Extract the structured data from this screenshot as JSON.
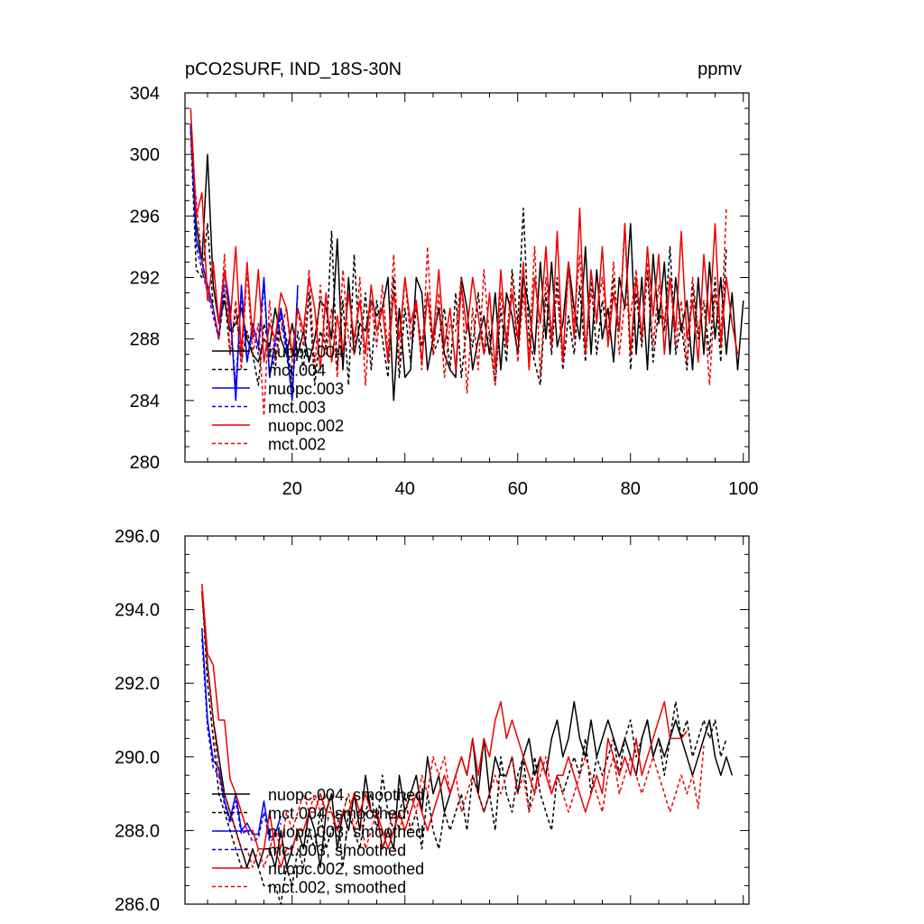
{
  "chart_data": [
    {
      "type": "line",
      "title_left": "pCO2SURF, IND_18S-30N",
      "title_right": "ppmv",
      "xlim": [
        1,
        101
      ],
      "ylim": [
        280,
        304
      ],
      "xticks": [
        20,
        40,
        60,
        80,
        100
      ],
      "xtick_labels": [
        "20",
        "40",
        "60",
        "80",
        "100"
      ],
      "yticks": [
        280,
        284,
        288,
        292,
        296,
        300,
        304
      ],
      "ytick_labels": [
        "280",
        "284",
        "288",
        "292",
        "296",
        "300",
        "304"
      ],
      "legend_position": "lower-left",
      "series": [
        {
          "name": "nuopc.004",
          "color": "#000000",
          "dash": "solid",
          "x_start": 2,
          "values": [
            301.8,
            295.5,
            293.0,
            300.0,
            291.5,
            289.0,
            290.5,
            288.5,
            289.0,
            290.0,
            288.0,
            287.0,
            286.5,
            288.0,
            287.5,
            290.0,
            288.0,
            287.0,
            289.0,
            287.0,
            288.5,
            286.5,
            288.0,
            290.5,
            290.0,
            288.0,
            294.5,
            286.0,
            292.0,
            287.0,
            289.0,
            288.5,
            290.5,
            289.5,
            290.0,
            292.0,
            284.0,
            290.0,
            285.5,
            286.0,
            292.0,
            291.0,
            286.0,
            288.0,
            290.0,
            287.0,
            286.0,
            285.5,
            292.0,
            290.0,
            286.0,
            288.0,
            289.5,
            287.0,
            291.0,
            286.0,
            291.0,
            289.5,
            287.0,
            292.0,
            290.0,
            287.0,
            293.0,
            288.0,
            293.0,
            287.5,
            289.0,
            293.0,
            290.0,
            288.0,
            294.0,
            287.0,
            292.5,
            288.0,
            290.0,
            286.5,
            292.0,
            290.0,
            295.5,
            287.0,
            292.0,
            286.0,
            293.5,
            289.0,
            293.0,
            287.0,
            292.0,
            288.5,
            290.5,
            286.0,
            292.0,
            287.0,
            293.0,
            288.0,
            292.0,
            287.0,
            291.0,
            286.0,
            290.5
          ]
        },
        {
          "name": "mct.004",
          "color": "#000000",
          "dash": "dashed",
          "x_start": 2,
          "values": [
            301.5,
            292.5,
            292.0,
            295.5,
            290.0,
            288.0,
            291.0,
            287.0,
            290.0,
            286.5,
            288.5,
            287.0,
            285.0,
            289.0,
            287.5,
            286.0,
            290.0,
            288.0,
            285.0,
            288.5,
            286.0,
            291.0,
            285.0,
            288.5,
            287.5,
            295.0,
            286.0,
            290.5,
            285.0,
            293.5,
            287.0,
            291.0,
            286.0,
            290.5,
            288.0,
            285.5,
            292.0,
            285.5,
            290.0,
            286.5,
            290.0,
            287.5,
            291.0,
            287.0,
            288.0,
            290.0,
            286.0,
            291.0,
            285.5,
            289.0,
            287.5,
            291.0,
            287.0,
            288.5,
            285.0,
            290.0,
            286.5,
            292.5,
            289.0,
            296.5,
            288.0,
            286.5,
            285.0,
            291.0,
            287.0,
            292.0,
            286.0,
            289.5,
            287.0,
            291.5,
            286.5,
            292.0,
            287.0,
            290.5,
            288.0,
            292.0,
            288.5,
            295.5,
            286.0,
            291.0,
            287.5,
            292.5,
            286.5,
            290.0,
            288.5,
            294.0,
            287.0,
            289.0,
            286.0,
            291.5,
            288.0,
            290.5,
            287.0,
            292.0,
            286.5,
            294.0
          ]
        },
        {
          "name": "nuopc.003",
          "color": "#0000ee",
          "dash": "solid",
          "x_start": 2,
          "values": [
            302.0,
            294.5,
            293.0,
            291.5,
            290.0,
            288.0,
            292.5,
            290.0,
            284.0,
            291.5,
            286.5,
            289.0,
            287.5,
            292.0,
            285.5,
            288.0,
            290.0,
            287.5,
            284.0,
            291.5
          ]
        },
        {
          "name": "mct.003",
          "color": "#0000ee",
          "dash": "dashed",
          "x_start": 2,
          "values": [
            302.0,
            294.0,
            292.5,
            291.0,
            289.5,
            288.0,
            291.5,
            289.5,
            285.0,
            291.0,
            286.5,
            288.5,
            287.0,
            291.5,
            285.5,
            287.5,
            289.5,
            287.0,
            284.5,
            291.0
          ]
        },
        {
          "name": "nuopc.002",
          "color": "#ee0000",
          "dash": "solid",
          "x_start": 2,
          "values": [
            303.0,
            296.0,
            297.5,
            290.5,
            293.0,
            289.0,
            292.5,
            289.0,
            294.0,
            287.0,
            293.0,
            288.0,
            292.5,
            286.5,
            289.0,
            288.0,
            291.0,
            290.0,
            287.0,
            290.0,
            288.5,
            292.0,
            290.0,
            286.0,
            291.0,
            286.5,
            289.5,
            287.0,
            291.0,
            288.0,
            290.5,
            287.0,
            291.5,
            288.5,
            290.0,
            286.5,
            291.0,
            288.0,
            292.0,
            289.0,
            290.5,
            286.5,
            291.0,
            288.0,
            292.5,
            287.5,
            290.0,
            286.0,
            291.5,
            288.5,
            292.0,
            289.5,
            287.0,
            291.0,
            286.0,
            292.5,
            287.5,
            291.0,
            288.0,
            293.0,
            286.0,
            292.0,
            289.0,
            294.0,
            287.5,
            295.0,
            286.5,
            293.0,
            288.0,
            296.5,
            287.0,
            292.5,
            289.0,
            294.0,
            287.5,
            291.0,
            288.5,
            295.5,
            287.0,
            292.0,
            288.0,
            294.0,
            289.5,
            293.5,
            287.0,
            292.0,
            288.5,
            295.0,
            288.0,
            290.5,
            286.5,
            293.5,
            289.0,
            295.5,
            287.5,
            292.0,
            289.0,
            287.0
          ]
        },
        {
          "name": "mct.002",
          "color": "#ee0000",
          "dash": "dashed",
          "x_start": 2,
          "values": [
            301.0,
            297.0,
            293.0,
            291.0,
            290.0,
            288.0,
            293.5,
            287.0,
            290.5,
            286.0,
            292.5,
            287.0,
            289.0,
            283.0,
            290.5,
            286.5,
            288.5,
            290.0,
            286.5,
            290.0,
            287.5,
            292.5,
            286.0,
            291.5,
            287.0,
            290.0,
            285.5,
            292.5,
            288.0,
            287.0,
            292.0,
            285.0,
            290.5,
            287.5,
            291.5,
            287.0,
            293.5,
            286.5,
            292.0,
            288.0,
            290.5,
            286.0,
            294.0,
            287.0,
            291.0,
            285.5,
            289.0,
            288.5,
            292.0,
            284.5,
            290.0,
            286.0,
            292.5,
            288.0,
            285.0,
            291.0,
            288.0,
            292.0,
            286.5,
            291.0,
            287.0,
            294.0,
            285.5,
            292.0,
            288.5,
            291.0,
            286.5,
            292.5,
            289.0,
            293.5,
            287.0,
            291.0,
            289.5,
            292.0,
            288.0,
            293.0,
            287.0,
            290.5,
            289.5,
            292.5,
            288.0,
            293.0,
            287.5,
            291.5,
            289.0,
            292.0,
            287.5,
            290.5,
            286.5,
            292.0,
            288.5,
            290.5,
            285.0,
            291.0,
            288.0,
            296.5
          ]
        }
      ]
    },
    {
      "type": "line",
      "title_left": "",
      "title_right": "",
      "xlim": [
        1,
        101
      ],
      "ylim": [
        286,
        296
      ],
      "xticks": [
        20,
        40,
        60,
        80,
        100
      ],
      "xtick_labels": [
        "",
        "",
        "",
        "",
        ""
      ],
      "yticks": [
        286,
        288,
        290,
        292,
        294,
        296
      ],
      "ytick_labels": [
        "286.0",
        "288.0",
        "290.0",
        "292.0",
        "294.0",
        "296.0"
      ],
      "legend_position": "lower-left",
      "series": [
        {
          "name": "nuopc.004, smoothed",
          "color": "#000000",
          "dash": "solid",
          "x_start": 4,
          "values": [
            294.5,
            292.5,
            291.0,
            290.0,
            289.0,
            288.5,
            288.0,
            287.5,
            287.0,
            287.5,
            287.0,
            287.5,
            287.5,
            287.0,
            288.0,
            287.0,
            287.5,
            288.0,
            287.5,
            288.5,
            288.0,
            287.0,
            288.5,
            289.0,
            287.5,
            288.5,
            288.0,
            289.0,
            288.0,
            289.5,
            288.5,
            288.5,
            287.5,
            288.0,
            287.5,
            289.5,
            288.5,
            289.0,
            289.5,
            288.5,
            290.0,
            289.0,
            289.5,
            288.5,
            289.0,
            289.5,
            290.0,
            289.5,
            290.5,
            289.0,
            290.5,
            289.0,
            290.0,
            289.5,
            289.5,
            290.0,
            289.0,
            290.0,
            290.5,
            289.5,
            290.0,
            289.5,
            290.5,
            291.0,
            290.0,
            290.5,
            291.5,
            290.5,
            290.0,
            291.0,
            290.0,
            290.5,
            291.0,
            290.5,
            290.0,
            290.5,
            290.0,
            289.5,
            290.5,
            291.0,
            290.0,
            290.5,
            290.0,
            290.5,
            291.0,
            290.5,
            290.0,
            289.5,
            290.0,
            290.5,
            291.0,
            290.0,
            289.5,
            290.0,
            289.5
          ]
        },
        {
          "name": "mct.004, smoothed",
          "color": "#000000",
          "dash": "dashed",
          "x_start": 4,
          "values": [
            294.5,
            292.0,
            290.5,
            289.0,
            288.5,
            288.0,
            287.5,
            287.0,
            287.0,
            287.5,
            287.0,
            286.5,
            286.5,
            286.5,
            286.0,
            287.0,
            286.5,
            287.5,
            287.0,
            288.0,
            287.5,
            288.5,
            287.5,
            288.0,
            288.5,
            287.0,
            288.5,
            288.0,
            287.5,
            288.5,
            289.0,
            288.0,
            289.5,
            288.5,
            288.0,
            288.5,
            289.0,
            288.0,
            288.5,
            287.5,
            289.0,
            288.0,
            287.5,
            288.5,
            288.0,
            288.5,
            289.0,
            288.0,
            289.5,
            289.0,
            288.5,
            289.0,
            288.0,
            290.0,
            289.0,
            288.5,
            289.5,
            290.0,
            288.5,
            290.0,
            289.0,
            288.5,
            288.0,
            289.5,
            289.0,
            289.5,
            290.0,
            289.5,
            290.5,
            289.0,
            290.0,
            289.5,
            290.0,
            290.5,
            289.5,
            290.5,
            291.0,
            290.0,
            290.5,
            291.0,
            290.0,
            290.5,
            289.5,
            290.5,
            291.5,
            290.5,
            291.0,
            290.0,
            290.5,
            291.0,
            290.5,
            291.0,
            290.0,
            290.5
          ]
        },
        {
          "name": "nuopc.003, smoothed",
          "color": "#0000ee",
          "dash": "solid",
          "x_start": 4,
          "values": [
            293.5,
            291.0,
            289.9,
            289.7,
            288.8,
            288.3,
            289.0,
            288.0,
            288.2,
            287.9,
            287.9,
            288.8,
            287.8,
            287.9,
            288.4
          ]
        },
        {
          "name": "mct.003, smoothed",
          "color": "#0000ee",
          "dash": "dashed",
          "x_start": 4,
          "values": [
            293.2,
            290.8,
            289.7,
            289.5,
            288.7,
            288.2,
            288.8,
            287.9,
            288.0,
            287.7,
            287.8,
            288.5,
            287.7,
            287.8,
            288.2
          ]
        },
        {
          "name": "nuopc.002, smoothed",
          "color": "#ee0000",
          "dash": "solid",
          "x_start": 4,
          "values": [
            294.7,
            292.8,
            292.5,
            291.0,
            291.0,
            289.4,
            289.0,
            288.5,
            288.0,
            288.0,
            287.5,
            287.5,
            288.5,
            287.5,
            287.0,
            287.5,
            287.5,
            288.0,
            288.0,
            288.5,
            288.5,
            289.0,
            288.5,
            288.5,
            288.0,
            288.5,
            288.5,
            289.0,
            288.5,
            289.0,
            288.5,
            288.5,
            288.0,
            287.5,
            288.0,
            288.5,
            288.0,
            288.5,
            289.0,
            288.5,
            288.0,
            288.5,
            289.0,
            289.5,
            289.0,
            289.5,
            290.0,
            289.5,
            290.5,
            289.5,
            290.5,
            290.0,
            291.0,
            291.5,
            290.5,
            291.0,
            290.5,
            290.0,
            289.5,
            289.0,
            290.0,
            289.5,
            289.0,
            289.5,
            289.5,
            290.0,
            289.5,
            289.0,
            288.5,
            289.0,
            289.5,
            289.0,
            290.5,
            290.0,
            289.5,
            290.0,
            289.5,
            290.5,
            289.5,
            290.0,
            290.5,
            291.0,
            291.5,
            290.5,
            290.5,
            290.5,
            290.7
          ]
        },
        {
          "name": "mct.002, smoothed",
          "color": "#ee0000",
          "dash": "dashed",
          "x_start": 4,
          "values": [
            294.5,
            292.5,
            291.0,
            289.5,
            289.0,
            288.5,
            288.0,
            287.5,
            287.5,
            287.0,
            287.5,
            287.0,
            287.5,
            288.0,
            287.5,
            288.5,
            288.0,
            288.5,
            289.0,
            288.5,
            289.0,
            288.5,
            289.0,
            288.5,
            288.0,
            288.5,
            289.0,
            288.0,
            288.5,
            287.5,
            288.0,
            288.5,
            287.5,
            288.0,
            288.5,
            288.0,
            288.5,
            289.0,
            288.5,
            289.5,
            289.0,
            290.0,
            289.5,
            290.0,
            289.0,
            289.5,
            288.5,
            289.0,
            289.5,
            289.0,
            288.5,
            289.0,
            289.5,
            289.0,
            289.5,
            290.0,
            289.0,
            289.5,
            288.5,
            289.0,
            289.5,
            290.0,
            289.0,
            289.5,
            289.0,
            288.5,
            289.0,
            289.5,
            290.0,
            289.5,
            289.0,
            288.5,
            289.5,
            290.0,
            289.0,
            289.5,
            290.0,
            289.5,
            289.0,
            289.5,
            290.0,
            289.5,
            289.0,
            288.5,
            289.0,
            289.5,
            289.0,
            289.5,
            288.6,
            290.3
          ]
        }
      ]
    }
  ]
}
